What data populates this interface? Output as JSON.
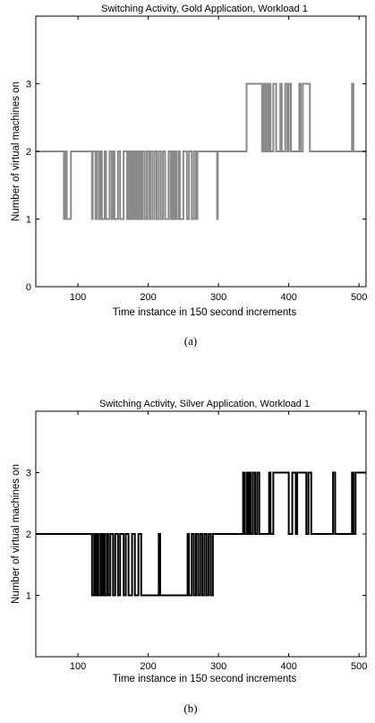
{
  "chart_data": [
    {
      "type": "line",
      "title": "Switching Activity, Gold Application, Workload 1",
      "xlabel": "Time instance in 150 second increments",
      "ylabel": "Number of virtual machines on",
      "caption": "(a)",
      "xlim": [
        40,
        510
      ],
      "ylim": [
        0,
        4
      ],
      "xticks": [
        "100",
        "200",
        "300",
        "400",
        "500"
      ],
      "yticks": [
        "0",
        "1",
        "2",
        "3"
      ],
      "xtick_values": [
        100,
        200,
        300,
        400,
        500
      ],
      "ytick_values": [
        0,
        1,
        2,
        3
      ],
      "grid": false,
      "series_color": "#8a8a8a",
      "series": [
        {
          "x": [
            40,
            80,
            80,
            82,
            82,
            84,
            84,
            90,
            90,
            91,
            91,
            120,
            120,
            121,
            121,
            125,
            125,
            127,
            127,
            130,
            130,
            132,
            132,
            134,
            134,
            138,
            138,
            140,
            140,
            145,
            145,
            148,
            148,
            150,
            150,
            152,
            152,
            157,
            157,
            160,
            160,
            165,
            165,
            170,
            170,
            172,
            172,
            174,
            174,
            176,
            176,
            178,
            178,
            180,
            180,
            182,
            182,
            184,
            184,
            186,
            186,
            188,
            188,
            190,
            190,
            192,
            192,
            195,
            195,
            198,
            198,
            201,
            201,
            203,
            203,
            206,
            206,
            209,
            209,
            212,
            212,
            215,
            215,
            218,
            218,
            221,
            221,
            224,
            224,
            229,
            229,
            232,
            232,
            234,
            234,
            236,
            236,
            238,
            238,
            240,
            240,
            243,
            243,
            245,
            245,
            250,
            250,
            255,
            255,
            258,
            258,
            262,
            262,
            265,
            265,
            268,
            268,
            270,
            270,
            285,
            285,
            298,
            298,
            299,
            299,
            340,
            340,
            362,
            362,
            364,
            364,
            366,
            366,
            368,
            368,
            370,
            370,
            372,
            372,
            374,
            374,
            378,
            378,
            382,
            382,
            388,
            388,
            390,
            390,
            395,
            395,
            398,
            398,
            400,
            400,
            403,
            403,
            415,
            415,
            417,
            417,
            420,
            420,
            430,
            430,
            432,
            432,
            490,
            490,
            492,
            492,
            510
          ],
          "y": [
            2,
            2,
            1,
            1,
            2,
            2,
            1,
            1,
            2,
            2,
            2,
            2,
            1,
            1,
            2,
            2,
            1,
            1,
            2,
            2,
            1,
            1,
            2,
            2,
            1,
            1,
            2,
            2,
            1,
            1,
            2,
            2,
            1,
            1,
            2,
            2,
            1,
            1,
            2,
            2,
            1,
            1,
            2,
            2,
            1,
            1,
            2,
            2,
            1,
            1,
            2,
            2,
            1,
            1,
            2,
            2,
            1,
            1,
            2,
            2,
            1,
            1,
            2,
            2,
            1,
            1,
            2,
            2,
            1,
            1,
            2,
            2,
            1,
            1,
            2,
            2,
            1,
            1,
            2,
            2,
            1,
            1,
            2,
            2,
            1,
            1,
            2,
            2,
            1,
            1,
            2,
            2,
            1,
            1,
            2,
            2,
            1,
            1,
            2,
            2,
            1,
            1,
            2,
            2,
            1,
            1,
            2,
            2,
            1,
            1,
            2,
            2,
            1,
            1,
            2,
            2,
            1,
            1,
            2,
            2,
            2,
            2,
            1,
            1,
            2,
            2,
            3,
            3,
            2,
            2,
            3,
            3,
            2,
            2,
            3,
            3,
            2,
            2,
            3,
            3,
            2,
            2,
            3,
            3,
            2,
            2,
            3,
            3,
            2,
            2,
            3,
            3,
            2,
            2,
            3,
            3,
            2,
            2,
            3,
            3,
            2,
            2,
            3,
            3,
            2,
            2,
            2,
            2,
            3,
            3,
            2,
            2
          ]
        }
      ]
    },
    {
      "type": "line",
      "title": "Switching Activity, Silver Application, Workload 1",
      "xlabel": "Time instance in 150 second increments",
      "ylabel": "Number of virtual machines on",
      "caption": "(b)",
      "xlim": [
        40,
        510
      ],
      "ylim": [
        0,
        4
      ],
      "xticks": [
        "100",
        "200",
        "300",
        "400",
        "500"
      ],
      "yticks": [
        "1",
        "2",
        "3"
      ],
      "xtick_values": [
        100,
        200,
        300,
        400,
        500
      ],
      "ytick_values": [
        1,
        2,
        3
      ],
      "grid": false,
      "series_color": "#000000",
      "series": [
        {
          "x": [
            40,
            120,
            120,
            123,
            123,
            125,
            125,
            127,
            127,
            129,
            129,
            132,
            132,
            134,
            134,
            136,
            136,
            138,
            138,
            141,
            141,
            143,
            143,
            146,
            146,
            150,
            150,
            153,
            153,
            157,
            157,
            160,
            160,
            165,
            165,
            168,
            168,
            172,
            172,
            177,
            177,
            181,
            181,
            186,
            186,
            190,
            190,
            195,
            195,
            215,
            215,
            217,
            217,
            256,
            256,
            258,
            258,
            262,
            262,
            265,
            265,
            268,
            268,
            271,
            271,
            274,
            274,
            277,
            277,
            280,
            280,
            283,
            283,
            286,
            286,
            289,
            289,
            292,
            292,
            335,
            335,
            337,
            337,
            340,
            340,
            342,
            342,
            344,
            344,
            346,
            346,
            349,
            349,
            352,
            352,
            355,
            355,
            358,
            358,
            372,
            372,
            374,
            374,
            378,
            378,
            380,
            380,
            400,
            400,
            405,
            405,
            410,
            410,
            412,
            412,
            425,
            425,
            428,
            428,
            432,
            432,
            463,
            463,
            466,
            466,
            490,
            490,
            492,
            492,
            495,
            495,
            510
          ],
          "y": [
            2,
            2,
            1,
            1,
            2,
            2,
            1,
            1,
            2,
            2,
            1,
            1,
            2,
            2,
            1,
            1,
            2,
            2,
            1,
            1,
            2,
            2,
            1,
            1,
            2,
            2,
            1,
            1,
            2,
            2,
            1,
            1,
            2,
            2,
            1,
            1,
            2,
            2,
            1,
            1,
            2,
            2,
            1,
            1,
            2,
            2,
            1,
            1,
            1,
            1,
            2,
            2,
            1,
            1,
            2,
            2,
            1,
            1,
            2,
            2,
            1,
            1,
            2,
            2,
            1,
            1,
            2,
            2,
            1,
            1,
            2,
            2,
            1,
            1,
            2,
            2,
            1,
            1,
            2,
            2,
            3,
            3,
            2,
            2,
            3,
            3,
            2,
            2,
            3,
            3,
            2,
            2,
            3,
            3,
            2,
            2,
            3,
            3,
            2,
            2,
            3,
            3,
            2,
            2,
            3,
            3,
            3,
            3,
            2,
            2,
            3,
            3,
            2,
            2,
            3,
            3,
            2,
            2,
            3,
            3,
            2,
            2,
            3,
            3,
            2,
            2,
            3,
            3,
            2,
            2,
            3,
            3
          ]
        }
      ]
    }
  ]
}
